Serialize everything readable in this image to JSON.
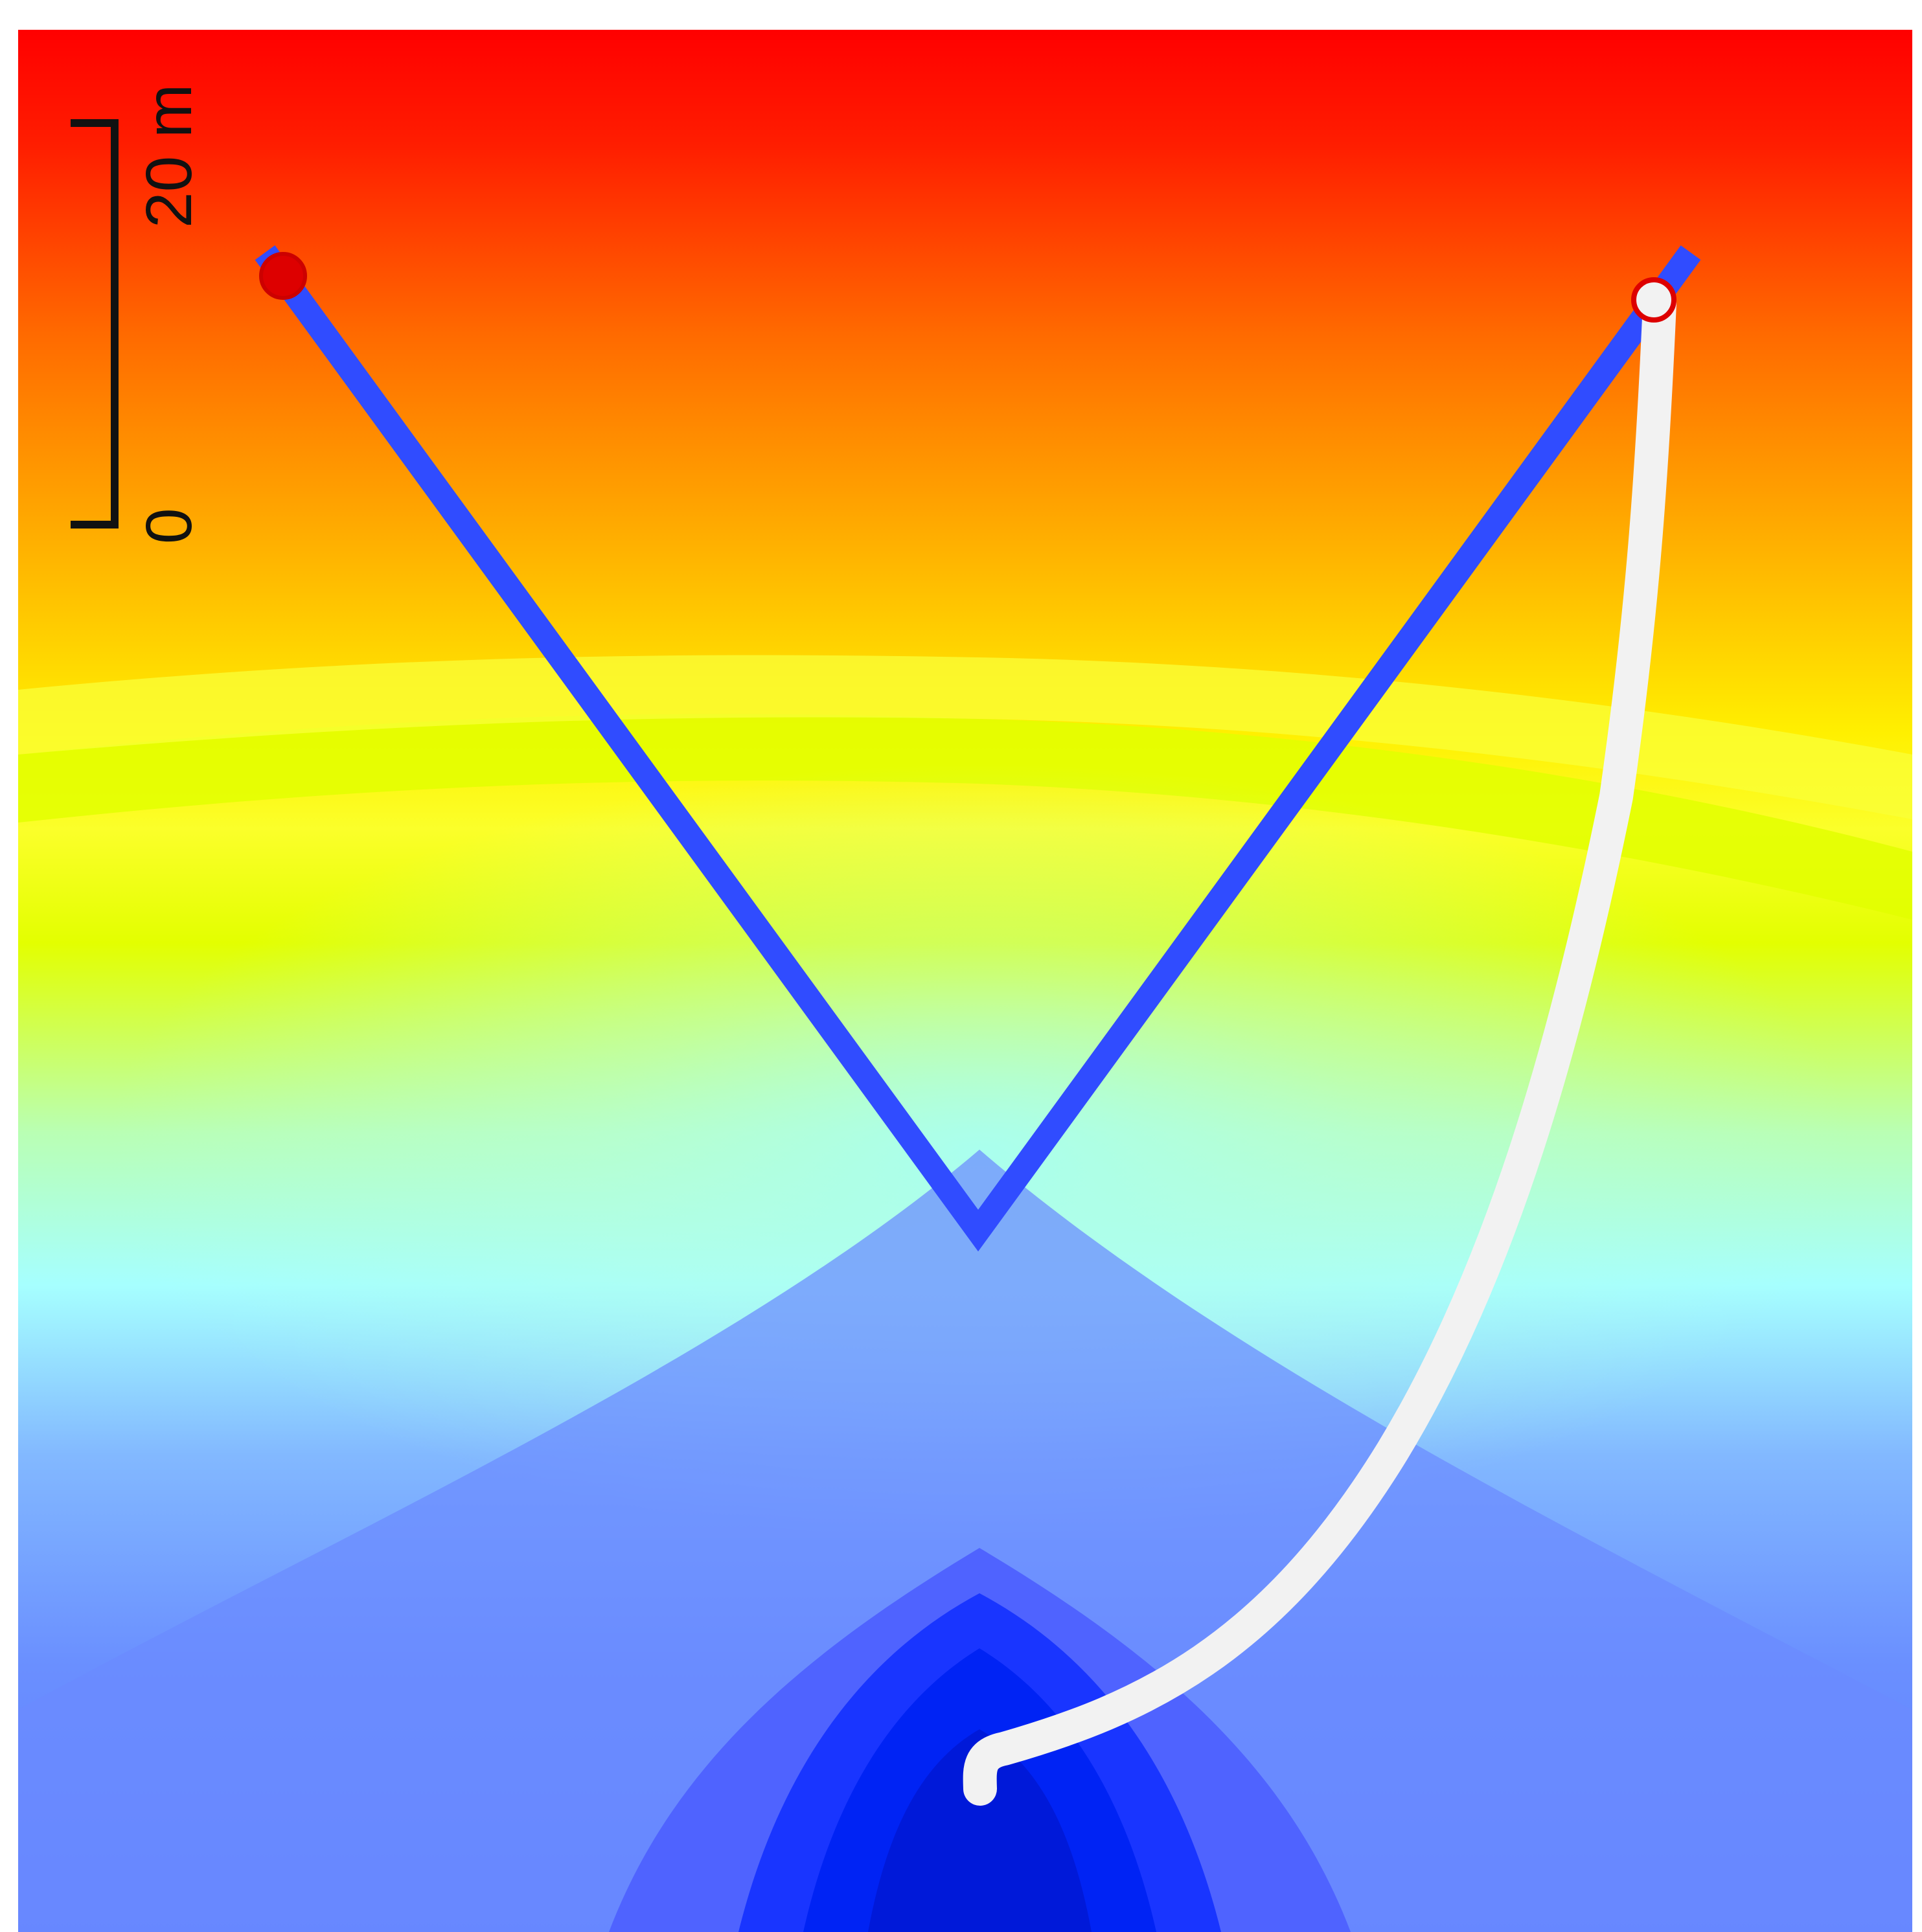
{
  "scale_bar": {
    "label_top": "20 m",
    "label_bottom": "0"
  },
  "colors": {
    "field_top": "#ff0000",
    "field_upper": "#ff8a00",
    "field_mid": "#f7ff00",
    "field_lower": "#a6ffff",
    "field_low": "#6b8cff",
    "field_bottom": "#001ae6",
    "v_path": "#304cff",
    "trajectory": "#f2f2f2",
    "marker": "#dd0000",
    "scale_bar": "#111111"
  },
  "legend": [],
  "markers": [
    {
      "name": "start-marker-left",
      "filled": true
    },
    {
      "name": "start-marker-right",
      "filled": false
    }
  ]
}
